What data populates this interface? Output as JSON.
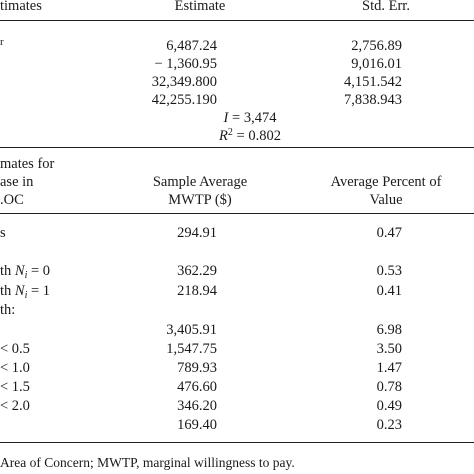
{
  "top": {
    "headers": {
      "col0": "timates",
      "col1": "Estimate",
      "col2": "Std. Err."
    },
    "row_stub": "r",
    "rows": [
      {
        "est": "6,487.24",
        "err": "2,756.89"
      },
      {
        "est": "− 1,360.95",
        "err": "9,016.01"
      },
      {
        "est": "32,349.800",
        "err": "4,151.542"
      },
      {
        "est": "42,255.190",
        "err": "7,838.943"
      }
    ],
    "stats": {
      "I_label": "I",
      "I_value": "3,474",
      "R_label": "R",
      "R_value": "0.802"
    }
  },
  "bottom": {
    "stub_header": [
      "mates for",
      "ase in",
      ".OC"
    ],
    "col1_header": [
      "Sample Average",
      "MWTP ($)"
    ],
    "col2_header": [
      "Average Percent of",
      "Value"
    ],
    "rows": [
      {
        "stub": "s",
        "mwtp": "294.91",
        "pct": "0.47"
      },
      {
        "stub": "th",
        "var": "N",
        "sub": "i",
        "cond": " = 0",
        "mwtp": "362.29",
        "pct": "0.53"
      },
      {
        "stub": "th",
        "var": "N",
        "sub": "i",
        "cond": " = 1",
        "mwtp": "218.94",
        "pct": "0.41"
      },
      {
        "stub": "th:"
      },
      {
        "stub": "",
        "mwtp": "3,405.91",
        "pct": "6.98"
      },
      {
        "stub": "< 0.5",
        "mwtp": "1,547.75",
        "pct": "3.50"
      },
      {
        "stub": "< 1.0",
        "mwtp": "789.93",
        "pct": "1.47"
      },
      {
        "stub": "< 1.5",
        "mwtp": "476.60",
        "pct": "0.78"
      },
      {
        "stub": "< 2.0",
        "mwtp": "346.20",
        "pct": "0.49"
      },
      {
        "stub": "",
        "mwtp": "169.40",
        "pct": "0.23"
      }
    ]
  },
  "footnote": "Area of Concern; MWTP, marginal willingness to pay."
}
